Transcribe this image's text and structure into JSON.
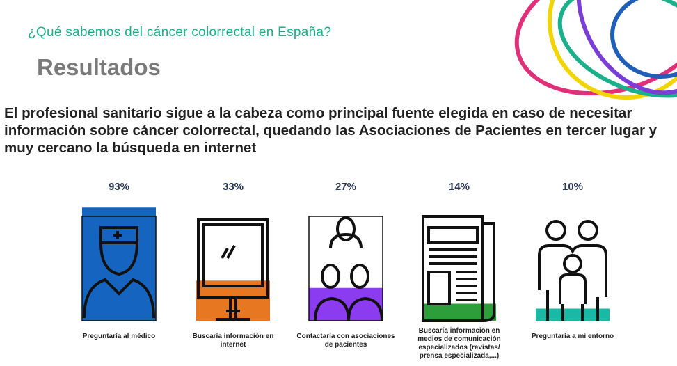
{
  "chart_data": {
    "type": "bar",
    "subtitle": "¿Qué sabemos del cáncer colorrectal en España?",
    "title": "Resultados",
    "headline": "El profesional sanitario sigue a la cabeza como principal fuente elegida en caso de necesitar información sobre cáncer colorrectal, quedando las Asociaciones de Pacientes en tercer lugar y muy cercano la búsqueda en internet",
    "categories": [
      "Preguntaría al médico",
      "Buscaría información en internet",
      "Contactaría con asociaciones de pacientes",
      "Buscaría información en medios de comunicación especializados (revistas/ prensa especializada,...)",
      "Preguntaría  a mi entorno"
    ],
    "values": [
      93,
      33,
      27,
      14,
      10
    ],
    "value_labels": [
      "93%",
      "33%",
      "27%",
      "14%",
      "10%"
    ],
    "colors": [
      "#1565c0",
      "#e87722",
      "#8b3cf0",
      "#2e9e3a",
      "#19b9a6"
    ],
    "ylim": [
      0,
      100
    ]
  }
}
